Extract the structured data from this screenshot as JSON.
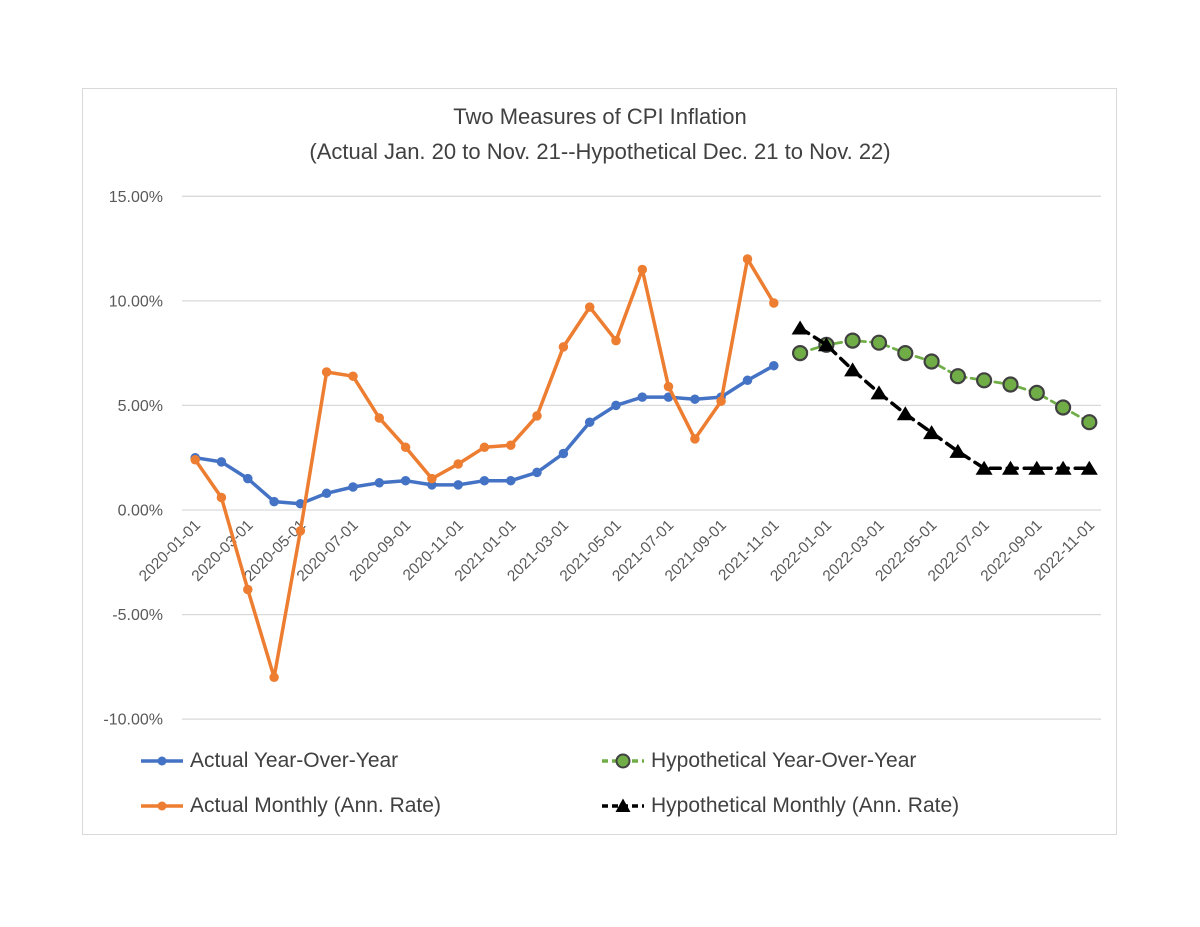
{
  "chart_data": {
    "type": "line",
    "title": "Two Measures of CPI Inflation",
    "subtitle": "(Actual Jan. 20 to Nov. 21--Hypothetical Dec. 21 to Nov. 22)",
    "grid": true,
    "legend_position": "bottom",
    "ylim": [
      -10,
      15
    ],
    "ytick_step": 5,
    "y_tick_labels": [
      "15.00%",
      "10.00%",
      "5.00%",
      "0.00%",
      "-5.00%",
      "-10.00%"
    ],
    "categories": [
      "2020-01-01",
      "2020-02-01",
      "2020-03-01",
      "2020-04-01",
      "2020-05-01",
      "2020-06-01",
      "2020-07-01",
      "2020-08-01",
      "2020-09-01",
      "2020-10-01",
      "2020-11-01",
      "2020-12-01",
      "2021-01-01",
      "2021-02-01",
      "2021-03-01",
      "2021-04-01",
      "2021-05-01",
      "2021-06-01",
      "2021-07-01",
      "2021-08-01",
      "2021-09-01",
      "2021-10-01",
      "2021-11-01",
      "2021-12-01",
      "2022-01-01",
      "2022-02-01",
      "2022-03-01",
      "2022-04-01",
      "2022-05-01",
      "2022-06-01",
      "2022-07-01",
      "2022-08-01",
      "2022-09-01",
      "2022-10-01",
      "2022-11-01"
    ],
    "x_tick_labels": [
      "2020-01-01",
      "2020-03-01",
      "2020-05-01",
      "2020-07-01",
      "2020-09-01",
      "2020-11-01",
      "2021-01-01",
      "2021-03-01",
      "2021-05-01",
      "2021-07-01",
      "2021-09-01",
      "2021-11-01",
      "2022-01-01",
      "2022-03-01",
      "2022-05-01",
      "2022-07-01",
      "2022-09-01",
      "2022-11-01"
    ],
    "colors": {
      "actual_yoy": "#4472C4",
      "actual_monthly": "#ED7D31",
      "hypothetical_yoy": "#70AD47",
      "hypothetical_monthly": "#000000",
      "marker_outline": "#404040",
      "gridline": "#D9D9D9",
      "axis_text": "#595959",
      "title_text": "#404040",
      "frame_border": "#D9D9D9"
    },
    "series": [
      {
        "id": "actual-yoy",
        "name": "Actual Year-Over-Year",
        "color": "#4472C4",
        "style": "solid",
        "marker": "dot",
        "start_index": 0,
        "values": [
          2.5,
          2.3,
          1.5,
          0.4,
          0.3,
          0.8,
          1.1,
          1.3,
          1.4,
          1.2,
          1.2,
          1.4,
          1.4,
          1.8,
          2.7,
          4.2,
          5.0,
          5.4,
          5.4,
          5.3,
          5.4,
          6.2,
          6.9
        ]
      },
      {
        "id": "actual-monthly",
        "name": "Actual Monthly (Ann. Rate)",
        "color": "#ED7D31",
        "style": "solid",
        "marker": "dot",
        "start_index": 0,
        "values": [
          2.4,
          0.6,
          -3.8,
          -8.0,
          -1.0,
          6.6,
          6.4,
          4.4,
          3.0,
          1.5,
          2.2,
          3.0,
          3.1,
          4.5,
          7.8,
          9.7,
          8.1,
          11.5,
          5.9,
          3.4,
          5.2,
          12.0,
          9.9
        ]
      },
      {
        "id": "hypothetical-yoy",
        "name": "Hypothetical Year-Over-Year",
        "color": "#70AD47",
        "style": "dashed",
        "marker": "circle-outlined",
        "start_index": 23,
        "values": [
          7.5,
          7.9,
          8.1,
          8.0,
          7.5,
          7.1,
          6.4,
          6.2,
          6.0,
          5.6,
          4.9,
          4.2
        ]
      },
      {
        "id": "hypothetical-monthly",
        "name": "Hypothetical Monthly (Ann. Rate)",
        "color": "#000000",
        "style": "dashed",
        "marker": "triangle",
        "start_index": 23,
        "values": [
          8.7,
          7.9,
          6.7,
          5.6,
          4.6,
          3.7,
          2.8,
          2.0,
          2.0,
          2.0,
          2.0,
          2.0
        ]
      }
    ]
  }
}
